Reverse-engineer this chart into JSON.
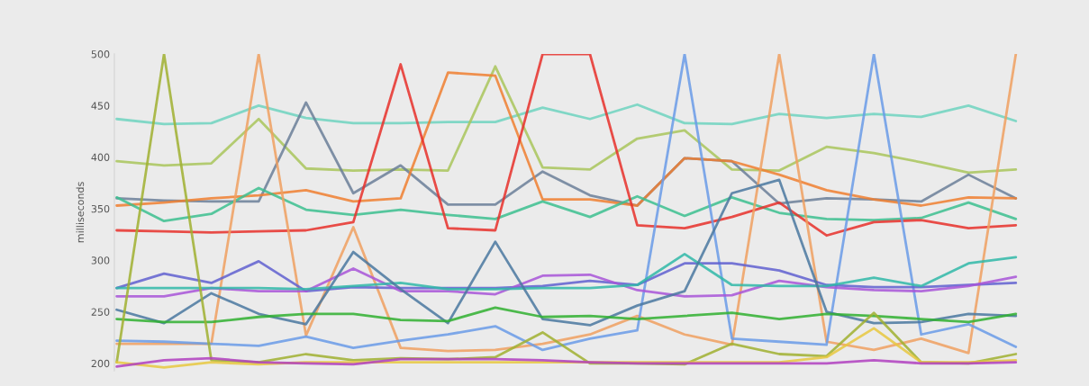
{
  "chart_data": {
    "type": "line",
    "ylabel": "milliseconds",
    "categories": [
      null,
      null,
      null,
      null,
      null,
      null,
      null,
      null,
      null,
      null,
      null,
      null,
      null,
      null,
      null,
      null,
      null,
      null,
      null,
      null
    ],
    "ylim": [
      193,
      500
    ],
    "yticks": [
      200,
      250,
      300,
      350,
      400,
      450,
      500
    ],
    "tick_labels": "y",
    "grid": false,
    "series": [
      {
        "color": "#6fd4c0",
        "values": [
          437,
          432,
          433,
          450,
          438,
          433,
          433,
          434,
          434,
          448,
          437,
          451,
          433,
          432,
          442,
          438,
          442,
          439,
          450,
          435
        ]
      },
      {
        "color": "#a9c65c",
        "values": [
          396,
          392,
          394,
          437,
          389,
          387,
          388,
          387,
          488,
          390,
          388,
          418,
          426,
          388,
          387,
          410,
          404,
          395,
          385,
          388
        ]
      },
      {
        "color": "#6b7f99",
        "values": [
          360,
          358,
          357,
          357,
          453,
          365,
          392,
          354,
          354,
          386,
          363,
          353,
          399,
          396,
          355,
          360,
          359,
          357,
          383,
          360
        ]
      },
      {
        "color": "#f07f30",
        "values": [
          353,
          356,
          360,
          363,
          368,
          357,
          360,
          482,
          479,
          359,
          359,
          353,
          399,
          396,
          383,
          368,
          359,
          353,
          361,
          360
        ]
      },
      {
        "color": "#3cbf8f",
        "values": [
          361,
          338,
          345,
          370,
          349,
          344,
          349,
          344,
          340,
          357,
          342,
          362,
          343,
          361,
          346,
          340,
          339,
          341,
          356,
          340
        ]
      },
      {
        "color": "#e8302a",
        "values": [
          329,
          328,
          327,
          328,
          329,
          337,
          490,
          331,
          329,
          500,
          500,
          334,
          331,
          342,
          356,
          324,
          337,
          339,
          331,
          334
        ]
      },
      {
        "color": "#f0a060",
        "values": [
          219,
          219,
          219,
          500,
          227,
          332,
          215,
          212,
          213,
          219,
          228,
          246,
          228,
          218,
          500,
          221,
          213,
          224,
          210,
          500
        ]
      },
      {
        "color": "#6a9be8",
        "values": [
          222,
          221,
          219,
          217,
          226,
          215,
          222,
          228,
          236,
          213,
          224,
          232,
          500,
          224,
          221,
          218,
          500,
          228,
          238,
          216
        ]
      },
      {
        "color": "#6060d0",
        "values": [
          273,
          287,
          278,
          299,
          270,
          274,
          273,
          273,
          273,
          275,
          280,
          276,
          297,
          297,
          290,
          276,
          274,
          274,
          276,
          278
        ]
      },
      {
        "color": "#a855d8",
        "values": [
          265,
          265,
          273,
          270,
          270,
          292,
          270,
          270,
          267,
          285,
          286,
          271,
          265,
          266,
          280,
          274,
          271,
          270,
          275,
          284
        ]
      },
      {
        "color": "#30b8a8",
        "values": [
          273,
          273,
          273,
          273,
          272,
          275,
          278,
          272,
          272,
          273,
          273,
          276,
          306,
          276,
          275,
          275,
          283,
          275,
          297,
          303
        ]
      },
      {
        "color": "#4a78a0",
        "values": [
          252,
          239,
          268,
          248,
          238,
          308,
          272,
          239,
          318,
          243,
          237,
          256,
          270,
          365,
          378,
          250,
          239,
          240,
          248,
          246
        ]
      },
      {
        "color": "#30b030",
        "values": [
          243,
          240,
          240,
          245,
          248,
          248,
          242,
          241,
          254,
          245,
          246,
          243,
          246,
          249,
          243,
          248,
          246,
          243,
          240,
          248
        ]
      },
      {
        "color": "#a0b030",
        "values": [
          201,
          500,
          203,
          201,
          209,
          203,
          205,
          204,
          206,
          230,
          200,
          200,
          199,
          219,
          209,
          207,
          249,
          201,
          200,
          209
        ]
      },
      {
        "color": "#e8c840",
        "values": [
          201,
          196,
          201,
          199,
          201,
          201,
          201,
          201,
          201,
          201,
          201,
          201,
          201,
          201,
          201,
          206,
          234,
          201,
          201,
          203
        ]
      },
      {
        "color": "#b040c0",
        "values": [
          197,
          203,
          205,
          201,
          200,
          199,
          204,
          204,
          204,
          203,
          201,
          200,
          200,
          200,
          200,
          200,
          203,
          200,
          200,
          201
        ]
      }
    ]
  }
}
